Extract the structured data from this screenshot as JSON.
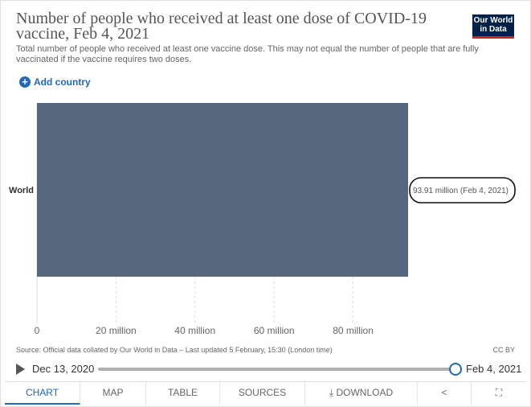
{
  "header": {
    "title": "Number of people who received at least one dose of COVID-19 vaccine, Feb 4, 2021",
    "subtitle": "Total number of people who received at least one vaccine dose. This may not equal the number of people that are fully vaccinated if the vaccine requires two doses.",
    "logo_text": "Our World in Data"
  },
  "controls": {
    "add_country": "Add country",
    "add_icon": "plus-circle-icon"
  },
  "chart_data": {
    "type": "bar",
    "orientation": "horizontal",
    "categories": [
      "World"
    ],
    "values": [
      93910000
    ],
    "value_labels": [
      "93.91 million (Feb 4, 2021)"
    ],
    "x_ticks": [
      0,
      20000000,
      40000000,
      60000000,
      80000000
    ],
    "x_tick_labels": [
      "0",
      "20 million",
      "40 million",
      "60 million",
      "80 million"
    ],
    "xlim": [
      0,
      93910000
    ],
    "grid": true,
    "bar_color": "#56677d"
  },
  "footer": {
    "source": "Source: Official data collated by Our World in Data – Last updated 5 February, 15:30 (London time)",
    "license": "CC BY"
  },
  "timeline": {
    "start": "Dec 13, 2020",
    "end": "Feb 4, 2021",
    "position": 1.0
  },
  "tabs": [
    {
      "label": "Chart",
      "icon": "",
      "active": true
    },
    {
      "label": "Map",
      "icon": ""
    },
    {
      "label": "Table",
      "icon": ""
    },
    {
      "label": "Sources",
      "icon": ""
    },
    {
      "label": "Download",
      "icon": "download-icon"
    },
    {
      "label": "",
      "icon": "share-icon"
    },
    {
      "label": "",
      "icon": "fullscreen-icon"
    }
  ]
}
